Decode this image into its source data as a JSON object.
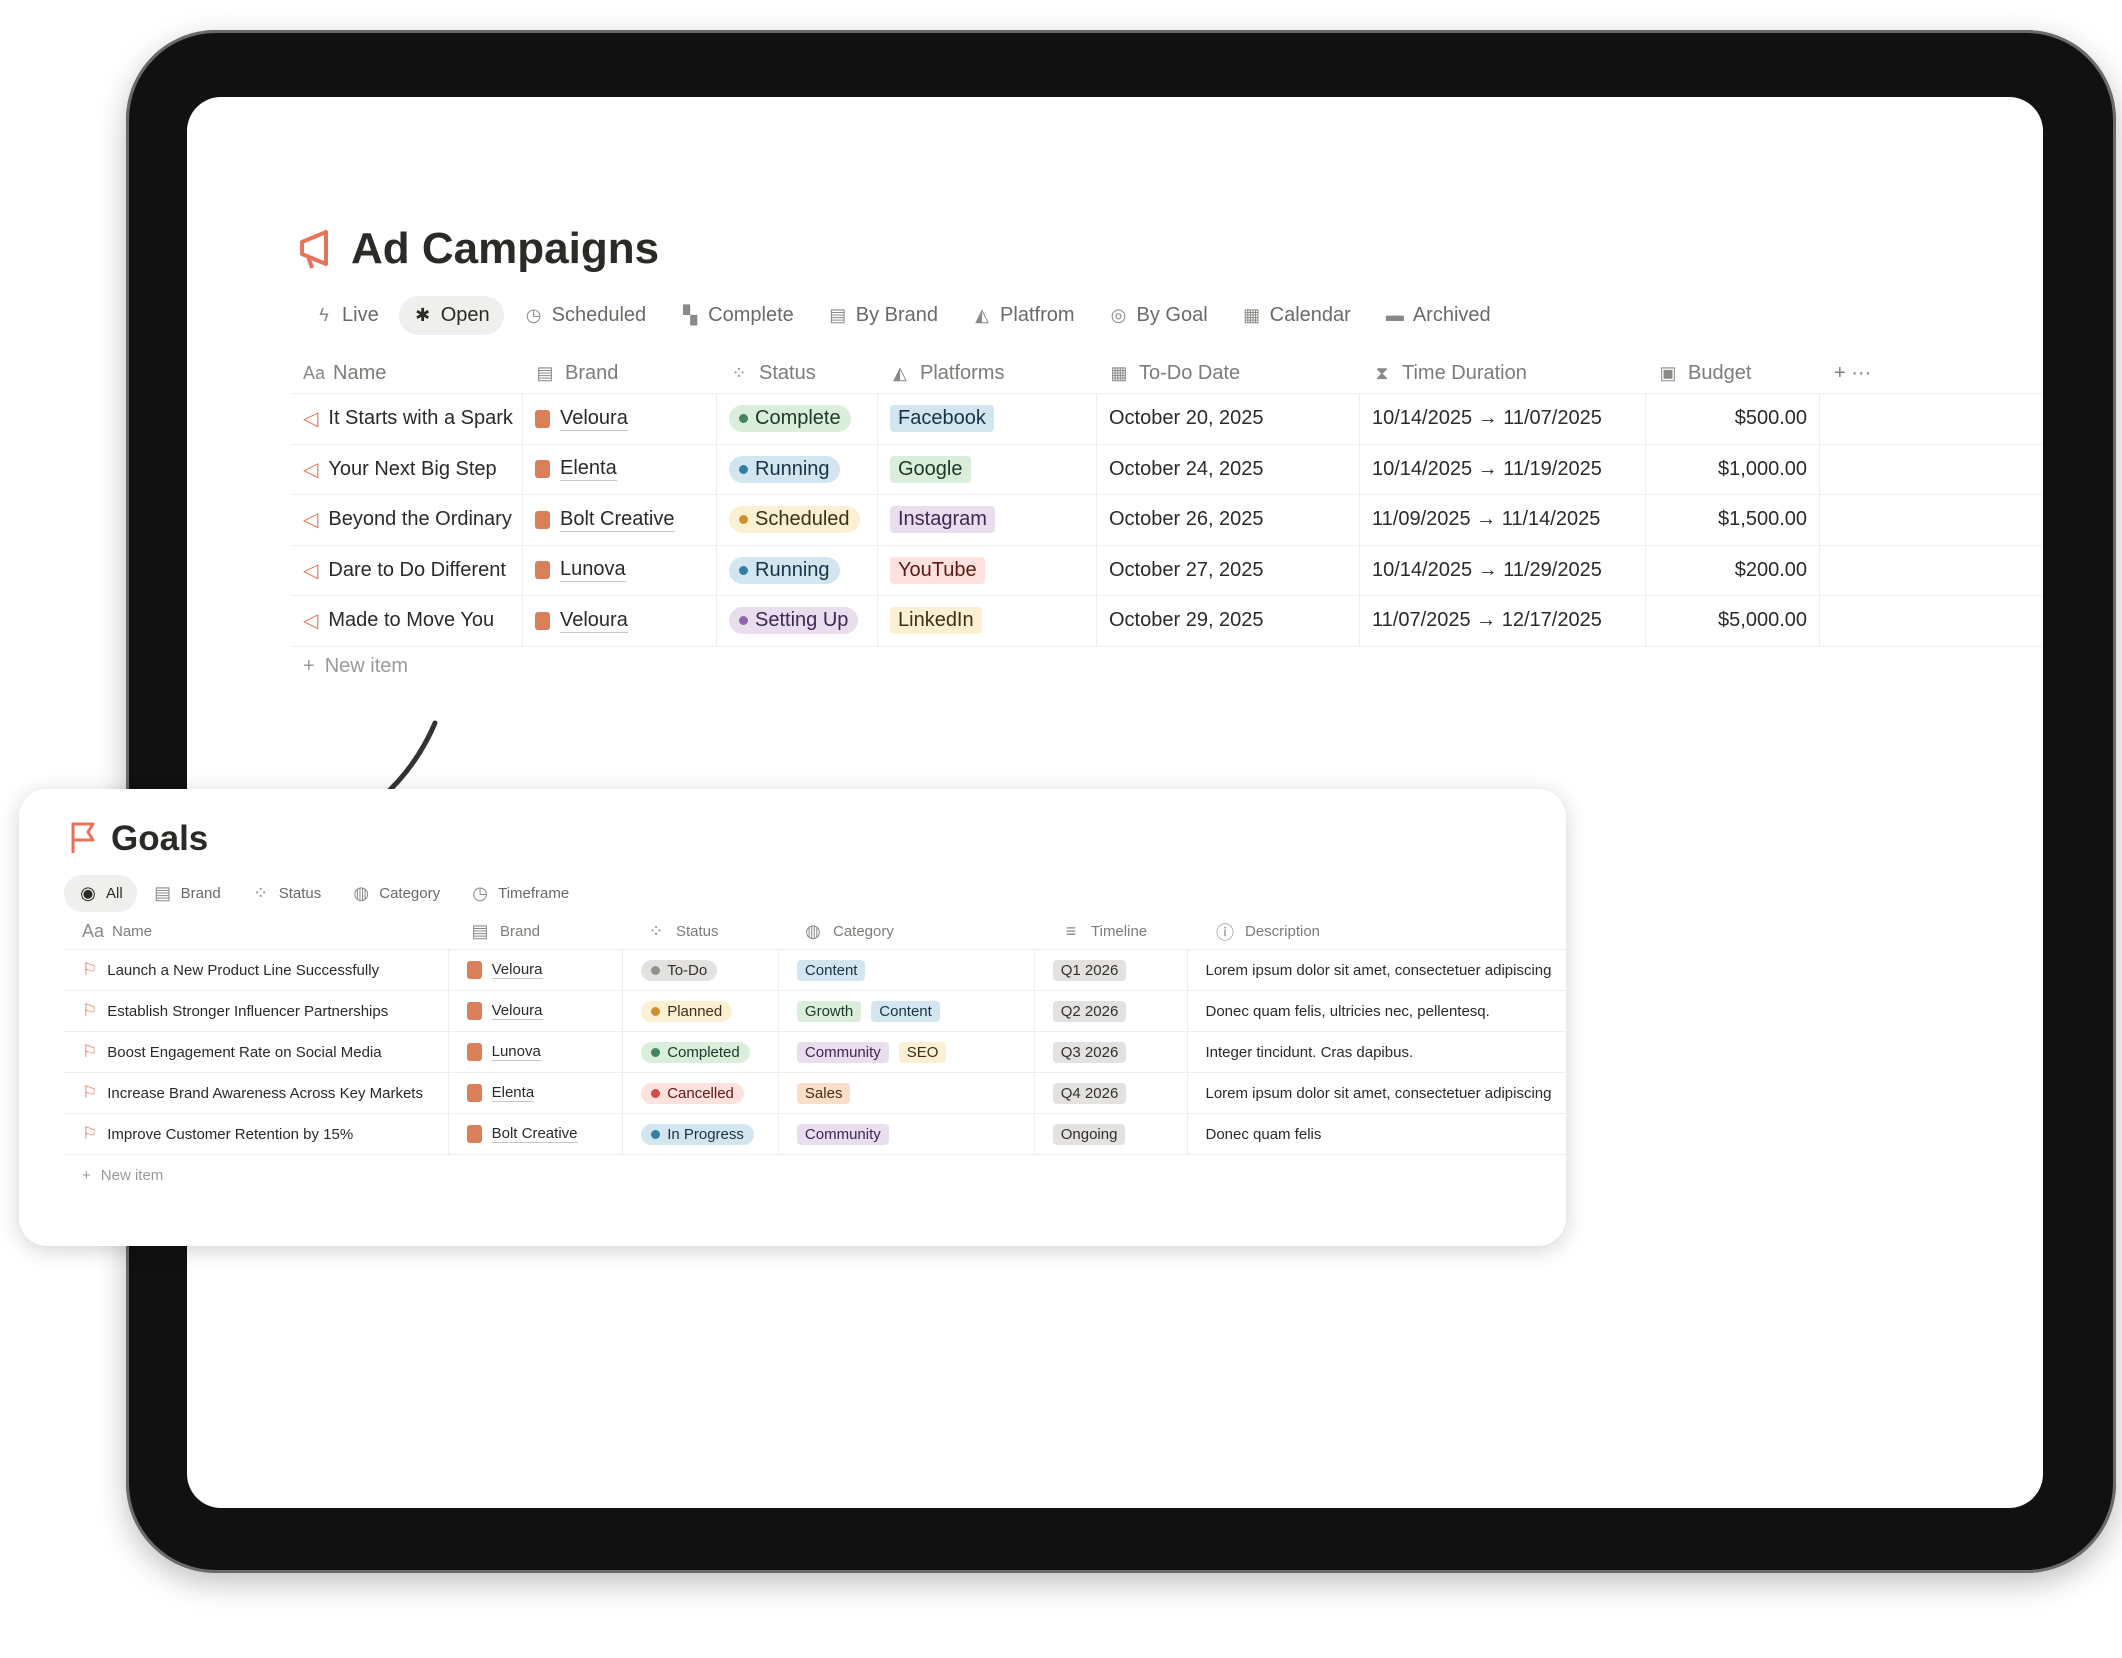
{
  "campaigns": {
    "title": "Ad Campaigns",
    "tabs": [
      {
        "label": "Live",
        "icon": "bolt-icon"
      },
      {
        "label": "Open",
        "icon": "asterisk-icon",
        "active": true
      },
      {
        "label": "Scheduled",
        "icon": "clock-icon"
      },
      {
        "label": "Complete",
        "icon": "checkered-flag-icon"
      },
      {
        "label": "By Brand",
        "icon": "store-icon"
      },
      {
        "label": "Platfrom",
        "icon": "shapes-icon"
      },
      {
        "label": "By Goal",
        "icon": "target-icon"
      },
      {
        "label": "Calendar",
        "icon": "calendar-icon"
      },
      {
        "label": "Archived",
        "icon": "archive-icon"
      }
    ],
    "columns": [
      {
        "label": "Name",
        "icon": "text-icon"
      },
      {
        "label": "Brand",
        "icon": "store-icon"
      },
      {
        "label": "Status",
        "icon": "status-icon"
      },
      {
        "label": "Platforms",
        "icon": "shapes-icon"
      },
      {
        "label": "To-Do Date",
        "icon": "calendar-icon"
      },
      {
        "label": "Time Duration",
        "icon": "hourglass-icon"
      },
      {
        "label": "Budget",
        "icon": "money-icon"
      }
    ],
    "rows": [
      {
        "name": "It Starts with a Spark",
        "brand": "Veloura",
        "status": "Complete",
        "status_color": "green",
        "platform": "Facebook",
        "platform_color": "blue",
        "todo": "October 20, 2025",
        "duration": "10/14/2025 → 11/07/2025",
        "budget": "$500.00"
      },
      {
        "name": "Your Next Big Step",
        "brand": "Elenta",
        "status": "Running",
        "status_color": "blue",
        "platform": "Google",
        "platform_color": "green",
        "todo": "October 24, 2025",
        "duration": "10/14/2025 → 11/19/2025",
        "budget": "$1,000.00"
      },
      {
        "name": "Beyond the Ordinary",
        "brand": "Bolt Creative",
        "status": "Scheduled",
        "status_color": "yellow",
        "platform": "Instagram",
        "platform_color": "purple",
        "todo": "October 26, 2025",
        "duration": "11/09/2025 → 11/14/2025",
        "budget": "$1,500.00"
      },
      {
        "name": "Dare to Do Different",
        "brand": "Lunova",
        "status": "Running",
        "status_color": "blue",
        "platform": "YouTube",
        "platform_color": "red",
        "todo": "October 27, 2025",
        "duration": "10/14/2025 → 11/29/2025",
        "budget": "$200.00"
      },
      {
        "name": "Made to Move You",
        "brand": "Veloura",
        "status": "Setting Up",
        "status_color": "purple",
        "platform": "LinkedIn",
        "platform_color": "yellow",
        "todo": "October 29, 2025",
        "duration": "11/07/2025 → 12/17/2025",
        "budget": "$5,000.00"
      }
    ],
    "new_item": "New item"
  },
  "goals": {
    "title": "Goals",
    "tabs": [
      {
        "label": "All",
        "icon": "circle-icon",
        "active": true
      },
      {
        "label": "Brand",
        "icon": "store-icon"
      },
      {
        "label": "Status",
        "icon": "status-icon"
      },
      {
        "label": "Category",
        "icon": "category-icon"
      },
      {
        "label": "Timeframe",
        "icon": "clock-icon"
      }
    ],
    "columns": [
      {
        "label": "Name",
        "icon": "text-icon"
      },
      {
        "label": "Brand",
        "icon": "store-icon"
      },
      {
        "label": "Status",
        "icon": "status-icon"
      },
      {
        "label": "Category",
        "icon": "category-icon"
      },
      {
        "label": "Timeline",
        "icon": "timeline-icon"
      },
      {
        "label": "Description",
        "icon": "info-icon"
      }
    ],
    "rows": [
      {
        "name": "Launch a New Product Line Successfully",
        "brand": "Veloura",
        "status": "To-Do",
        "status_color": "gray",
        "categories": [
          {
            "label": "Content",
            "color": "blue"
          }
        ],
        "timeline": "Q1 2026",
        "description": "Lorem ipsum dolor sit amet, consectetuer adipiscing"
      },
      {
        "name": "Establish Stronger Influencer Partnerships",
        "brand": "Veloura",
        "status": "Planned",
        "status_color": "yellow",
        "categories": [
          {
            "label": "Growth",
            "color": "green"
          },
          {
            "label": "Content",
            "color": "blue"
          }
        ],
        "timeline": "Q2 2026",
        "description": "Donec quam felis, ultricies nec, pellentesq."
      },
      {
        "name": "Boost Engagement Rate on Social Media",
        "brand": "Lunova",
        "status": "Completed",
        "status_color": "green",
        "categories": [
          {
            "label": "Community",
            "color": "purple"
          },
          {
            "label": "SEO",
            "color": "yellow"
          }
        ],
        "timeline": "Q3 2026",
        "description": "Integer tincidunt. Cras dapibus."
      },
      {
        "name": "Increase Brand Awareness Across Key Markets",
        "brand": "Elenta",
        "status": "Cancelled",
        "status_color": "red",
        "categories": [
          {
            "label": "Sales",
            "color": "orange"
          }
        ],
        "timeline": "Q4 2026",
        "description": "Lorem ipsum dolor sit amet, consectetuer adipiscing"
      },
      {
        "name": "Improve Customer Retention by 15%",
        "brand": "Bolt Creative",
        "status": "In Progress",
        "status_color": "blue",
        "categories": [
          {
            "label": "Community",
            "color": "purple"
          }
        ],
        "timeline": "Ongoing",
        "description": "Donec quam felis"
      }
    ],
    "new_item": "New item"
  },
  "colors": {
    "accent": "#e8735a",
    "pill": {
      "green": [
        "#dbeddb",
        "#448361",
        "#1c3829"
      ],
      "blue": [
        "#d3e5ef",
        "#337ea9",
        "#183347"
      ],
      "yellow": [
        "#fbf0d2",
        "#cb912f",
        "#402c1b"
      ],
      "purple": [
        "#e8deee",
        "#9065b0",
        "#412454"
      ],
      "red": [
        "#ffe2dd",
        "#d44c47",
        "#5d1715"
      ],
      "gray": [
        "#e3e2e0",
        "#91918e",
        "#32302c"
      ],
      "orange": [
        "#fadec9",
        "#d9730d",
        "#49290e"
      ]
    }
  }
}
